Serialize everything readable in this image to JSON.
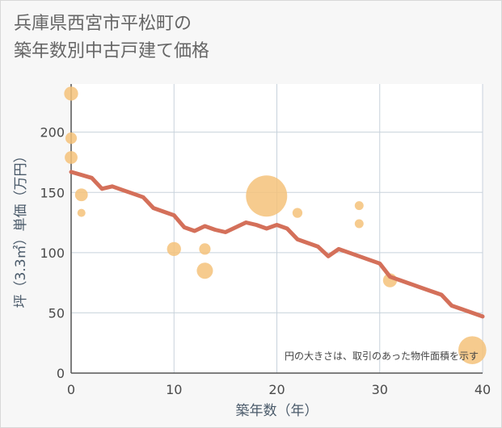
{
  "title": "兵庫県西宮市平松町の\n築年数別中古戸建て価格",
  "note": "円の大きさは、取引のあった物件面積を示す",
  "colors": {
    "line": "#d4705a",
    "bubble": "#f5c27a",
    "plot_bg": "#ffffff",
    "grid": "#c8d2dc"
  },
  "chart_data": {
    "type": "scatter",
    "title": "兵庫県西宮市平松町の\n築年数別中古戸建て価格",
    "xlabel": "築年数（年）",
    "ylabel": "坪（3.3㎡）単価（万円）",
    "xlim": [
      0,
      40
    ],
    "ylim": [
      0,
      240
    ],
    "xticks": [
      0,
      10,
      20,
      30,
      40
    ],
    "yticks": [
      0,
      50,
      100,
      150,
      200
    ],
    "grid": true,
    "trend_line": {
      "x": [
        0,
        2,
        3,
        4,
        5,
        6,
        7,
        8,
        9,
        10,
        11,
        12,
        13,
        14,
        15,
        16,
        17,
        18,
        19,
        20,
        21,
        22,
        23,
        24,
        25,
        26,
        27,
        28,
        29,
        30,
        31,
        32,
        33,
        34,
        35,
        36,
        37,
        38,
        39,
        40
      ],
      "y": [
        167,
        162,
        153,
        155,
        152,
        149,
        146,
        137,
        134,
        131,
        121,
        118,
        122,
        119,
        117,
        121,
        125,
        123,
        120,
        123,
        120,
        111,
        108,
        105,
        97,
        103,
        100,
        97,
        94,
        91,
        80,
        77,
        74,
        71,
        68,
        65,
        56,
        53,
        50,
        47
      ]
    },
    "bubbles": [
      {
        "x": 0,
        "y": 232,
        "size": 3
      },
      {
        "x": 0,
        "y": 195,
        "size": 2
      },
      {
        "x": 0,
        "y": 179,
        "size": 2.5
      },
      {
        "x": 1,
        "y": 148,
        "size": 2.5
      },
      {
        "x": 1,
        "y": 133,
        "size": 1
      },
      {
        "x": 10,
        "y": 103,
        "size": 3
      },
      {
        "x": 13,
        "y": 103,
        "size": 2
      },
      {
        "x": 13,
        "y": 85,
        "size": 4
      },
      {
        "x": 19,
        "y": 147,
        "size": 26
      },
      {
        "x": 22,
        "y": 133,
        "size": 1.5
      },
      {
        "x": 28,
        "y": 139,
        "size": 1.2
      },
      {
        "x": 28,
        "y": 124,
        "size": 1.2
      },
      {
        "x": 31,
        "y": 77,
        "size": 3
      },
      {
        "x": 39,
        "y": 19,
        "size": 12
      }
    ]
  }
}
